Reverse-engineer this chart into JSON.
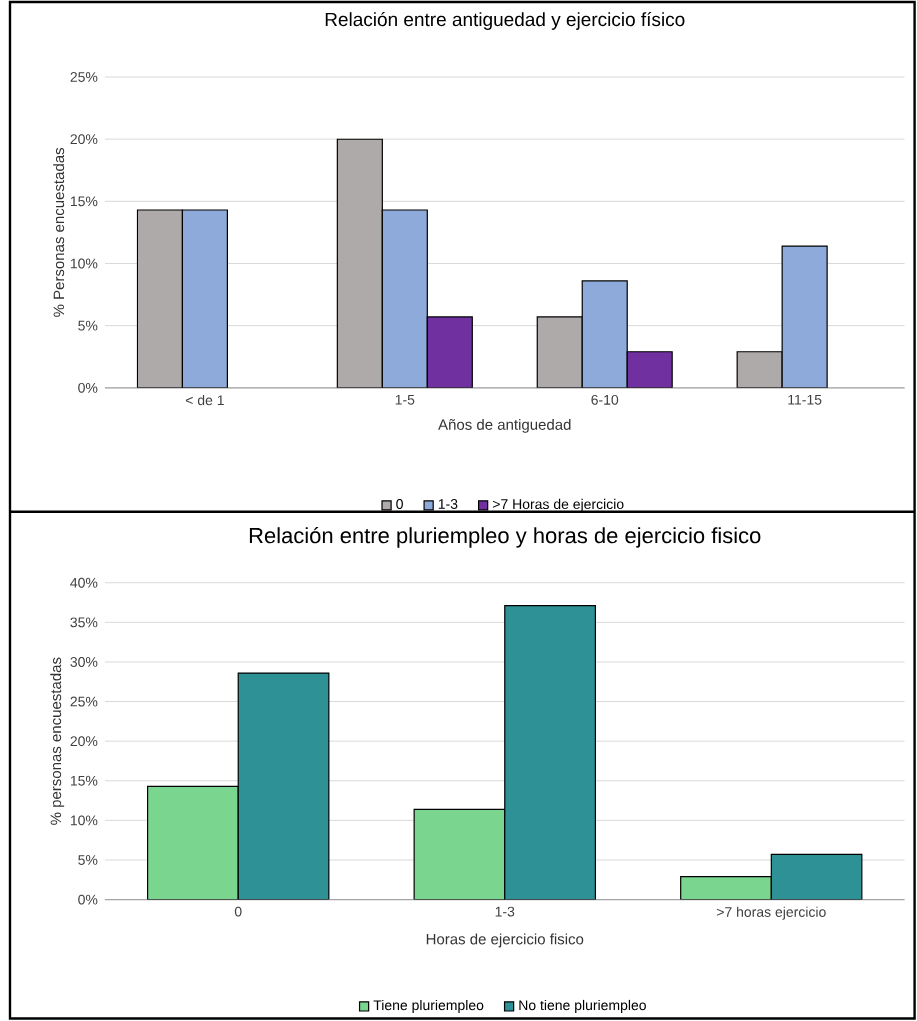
{
  "chart_data": [
    {
      "type": "bar",
      "title": "Relación entre antiguedad y ejercicio físico",
      "xlabel": "Años de antiguedad",
      "ylabel": "% Personas encuestadas",
      "categories": [
        "< de 1",
        "1-5",
        "6-10",
        "11-15"
      ],
      "series": [
        {
          "name": "0",
          "color": "#aeaaaa",
          "values": [
            14.3,
            20,
            5.7,
            2.9
          ]
        },
        {
          "name": "1-3",
          "color": "#8eaadb",
          "values": [
            14.3,
            14.3,
            8.6,
            11.4
          ]
        },
        {
          "name": ">7 Horas de ejercicio",
          "color": "#7030a0",
          "values": [
            null,
            5.7,
            2.9,
            null
          ]
        }
      ],
      "ylim": [
        0,
        25
      ],
      "yticks": [
        {
          "value": 0,
          "label": "0%"
        },
        {
          "value": 5,
          "label": "5%"
        },
        {
          "value": 10,
          "label": "10%"
        },
        {
          "value": 15,
          "label": "15%"
        },
        {
          "value": 20,
          "label": "20%"
        },
        {
          "value": 25,
          "label": "25%"
        }
      ],
      "grid": "y",
      "legend": "bottom"
    },
    {
      "type": "bar",
      "title": "Relación entre pluriempleo y horas de ejercicio fisico",
      "xlabel": "Horas de ejercicio fisico",
      "ylabel": "% personas encuestadas",
      "categories": [
        "0",
        "1-3",
        ">7 horas ejercicio"
      ],
      "series": [
        {
          "name": "Tiene pluriempleo",
          "color": "#7ad68f",
          "values": [
            14.3,
            11.4,
            2.9
          ]
        },
        {
          "name": "No tiene pluriempleo",
          "color": "#2e9196",
          "values": [
            28.6,
            37.1,
            5.7
          ]
        }
      ],
      "ylim": [
        0,
        40
      ],
      "yticks": [
        {
          "value": 0,
          "label": "0%"
        },
        {
          "value": 5,
          "label": "5%"
        },
        {
          "value": 10,
          "label": "10%"
        },
        {
          "value": 15,
          "label": "15%"
        },
        {
          "value": 20,
          "label": "20%"
        },
        {
          "value": 25,
          "label": "25%"
        },
        {
          "value": 30,
          "label": "30%"
        },
        {
          "value": 35,
          "label": "35%"
        },
        {
          "value": 40,
          "label": "40%"
        }
      ],
      "grid": "y",
      "legend": "bottom"
    }
  ]
}
